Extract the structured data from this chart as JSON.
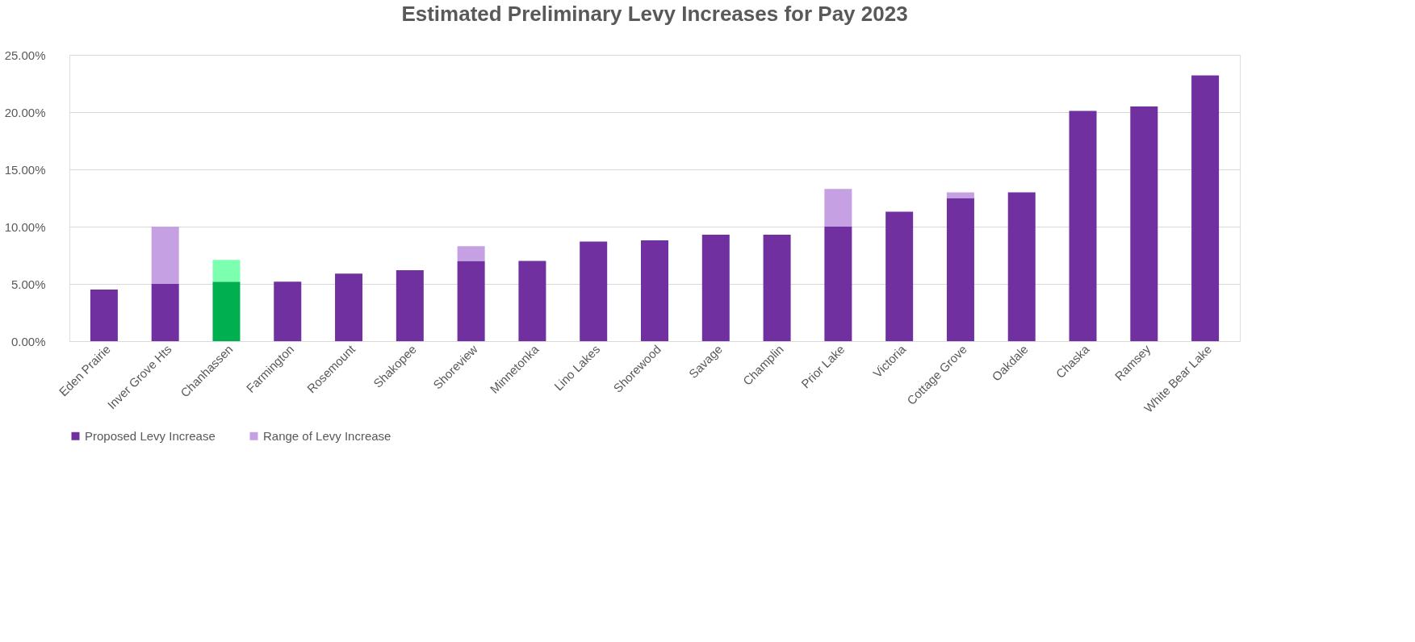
{
  "chart_data": {
    "type": "bar",
    "title": "Estimated Preliminary Levy Increases for Pay 2023",
    "stacked": true,
    "categories": [
      "Eden Prairie",
      "Inver Grove Hts",
      "Chanhassen",
      "Farmington",
      "Rosemount",
      "Shakopee",
      "Shoreview",
      "Minnetonka",
      "Lino Lakes",
      "Shorewood",
      "Savage",
      "Champlin",
      "Prior Lake",
      "Victoria",
      "Cottage Grove",
      "Oakdale",
      "Chaska",
      "Ramsey",
      "White Bear Lake"
    ],
    "series": [
      {
        "name": "Proposed Levy Increase",
        "color": "#7030a0",
        "colors": [
          "#7030a0",
          "#7030a0",
          "#00b050",
          "#7030a0",
          "#7030a0",
          "#7030a0",
          "#7030a0",
          "#7030a0",
          "#7030a0",
          "#7030a0",
          "#7030a0",
          "#7030a0",
          "#7030a0",
          "#7030a0",
          "#7030a0",
          "#7030a0",
          "#7030a0",
          "#7030a0",
          "#7030a0"
        ],
        "values": [
          4.5,
          5.0,
          5.2,
          5.2,
          5.9,
          6.2,
          7.0,
          7.0,
          8.7,
          8.8,
          9.3,
          9.3,
          10.0,
          11.3,
          12.5,
          13.0,
          20.1,
          20.5,
          23.2
        ]
      },
      {
        "name": "Range of Levy Increase",
        "color": "#c5a0e3",
        "colors": [
          "#c5a0e3",
          "#c5a0e3",
          "#7dffb0",
          "#c5a0e3",
          "#c5a0e3",
          "#c5a0e3",
          "#c5a0e3",
          "#c5a0e3",
          "#c5a0e3",
          "#c5a0e3",
          "#c5a0e3",
          "#c5a0e3",
          "#c5a0e3",
          "#c5a0e3",
          "#c5a0e3",
          "#c5a0e3",
          "#c5a0e3",
          "#c5a0e3",
          "#c5a0e3"
        ],
        "values": [
          null,
          5.0,
          1.9,
          null,
          null,
          null,
          1.3,
          null,
          null,
          null,
          null,
          null,
          3.3,
          null,
          0.5,
          null,
          null,
          null,
          null
        ]
      }
    ],
    "ylim": [
      0,
      25
    ],
    "yticks": [
      {
        "value": 0,
        "label": "0.00%"
      },
      {
        "value": 5,
        "label": "5.00%"
      },
      {
        "value": 10,
        "label": "10.00%"
      },
      {
        "value": 15,
        "label": "15.00%"
      },
      {
        "value": 20,
        "label": "20.00%"
      },
      {
        "value": 25,
        "label": "25.00%"
      }
    ],
    "grid": "y",
    "legend": "bottom"
  }
}
